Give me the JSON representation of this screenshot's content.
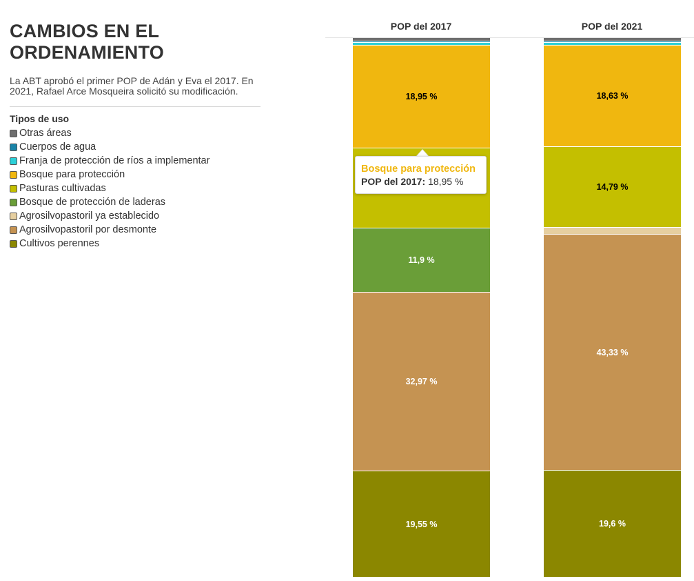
{
  "title": "CAMBIOS EN EL ORDENAMIENTO",
  "subtitle": "La ABT aprobó el primer POP de Adán y Eva el 2017. En 2021, Rafael Arce Mosqueira solicitó su modificación.",
  "legend": {
    "title": "Tipos de uso",
    "items": [
      {
        "label": "Otras áreas",
        "color": "#6e6e6e"
      },
      {
        "label": "Cuerpos de agua",
        "color": "#1a84a8"
      },
      {
        "label": "Franja de protección de ríos a implementar",
        "color": "#2bd0d8"
      },
      {
        "label": "Bosque para protección",
        "color": "#f0b70f"
      },
      {
        "label": "Pasturas cultivadas",
        "color": "#c4bf00"
      },
      {
        "label": "Bosque de protección de laderas",
        "color": "#6a9e38"
      },
      {
        "label": "Agrosilvopastoril ya establecido",
        "color": "#e6cfa0"
      },
      {
        "label": "Agrosilvopastoril por desmonte",
        "color": "#c59352"
      },
      {
        "label": "Cultivos perennes",
        "color": "#8b8700"
      }
    ]
  },
  "tooltip": {
    "title": "Bosque para protección",
    "series_label": "POP del 2017:",
    "value_text": "18,95 %"
  },
  "chart_data": {
    "type": "bar",
    "stacked": true,
    "normalized_percent": true,
    "categories": [
      "POP del 2017",
      "POP del 2021"
    ],
    "series": [
      {
        "name": "Otras áreas",
        "color": "#6e6e6e",
        "values": [
          0.6,
          0.6
        ],
        "labels": [
          "",
          ""
        ]
      },
      {
        "name": "Cuerpos de agua",
        "color": "#1a84a8",
        "values": [
          0.3,
          0.3
        ],
        "labels": [
          "",
          ""
        ]
      },
      {
        "name": "Franja de protección de ríos a implementar",
        "color": "#2bd0d8",
        "values": [
          0.5,
          0.5
        ],
        "labels": [
          "",
          ""
        ]
      },
      {
        "name": "Bosque para protección",
        "color": "#f0b70f",
        "values": [
          18.95,
          18.63
        ],
        "labels": [
          "18,95 %",
          "18,63 %"
        ]
      },
      {
        "name": "Pasturas cultivadas",
        "color": "#c4bf00",
        "values": [
          14.7,
          14.79
        ],
        "labels": [
          "",
          "14,79 %"
        ]
      },
      {
        "name": "Bosque de protección de laderas",
        "color": "#6a9e38",
        "values": [
          11.9,
          0
        ],
        "labels": [
          "11,9 %",
          ""
        ]
      },
      {
        "name": "Agrosilvopastoril ya establecido",
        "color": "#e6cfa0",
        "values": [
          0,
          1.3
        ],
        "labels": [
          "",
          ""
        ]
      },
      {
        "name": "Agrosilvopastoril por desmonte",
        "color": "#c59352",
        "values": [
          32.97,
          43.33
        ],
        "labels": [
          "32,97 %",
          "43,33 %"
        ]
      },
      {
        "name": "Cultivos perennes",
        "color": "#8b8700",
        "values": [
          19.55,
          19.6
        ],
        "labels": [
          "19,55 %",
          "19,6 %"
        ]
      }
    ],
    "label_colors": {
      "Bosque para protección": "#000000",
      "Pasturas cultivadas": "#000000",
      "Bosque de protección de laderas": "#ffffff",
      "Agrosilvopastoril por desmonte": "#ffffff",
      "Cultivos perennes": "#ffffff"
    }
  }
}
